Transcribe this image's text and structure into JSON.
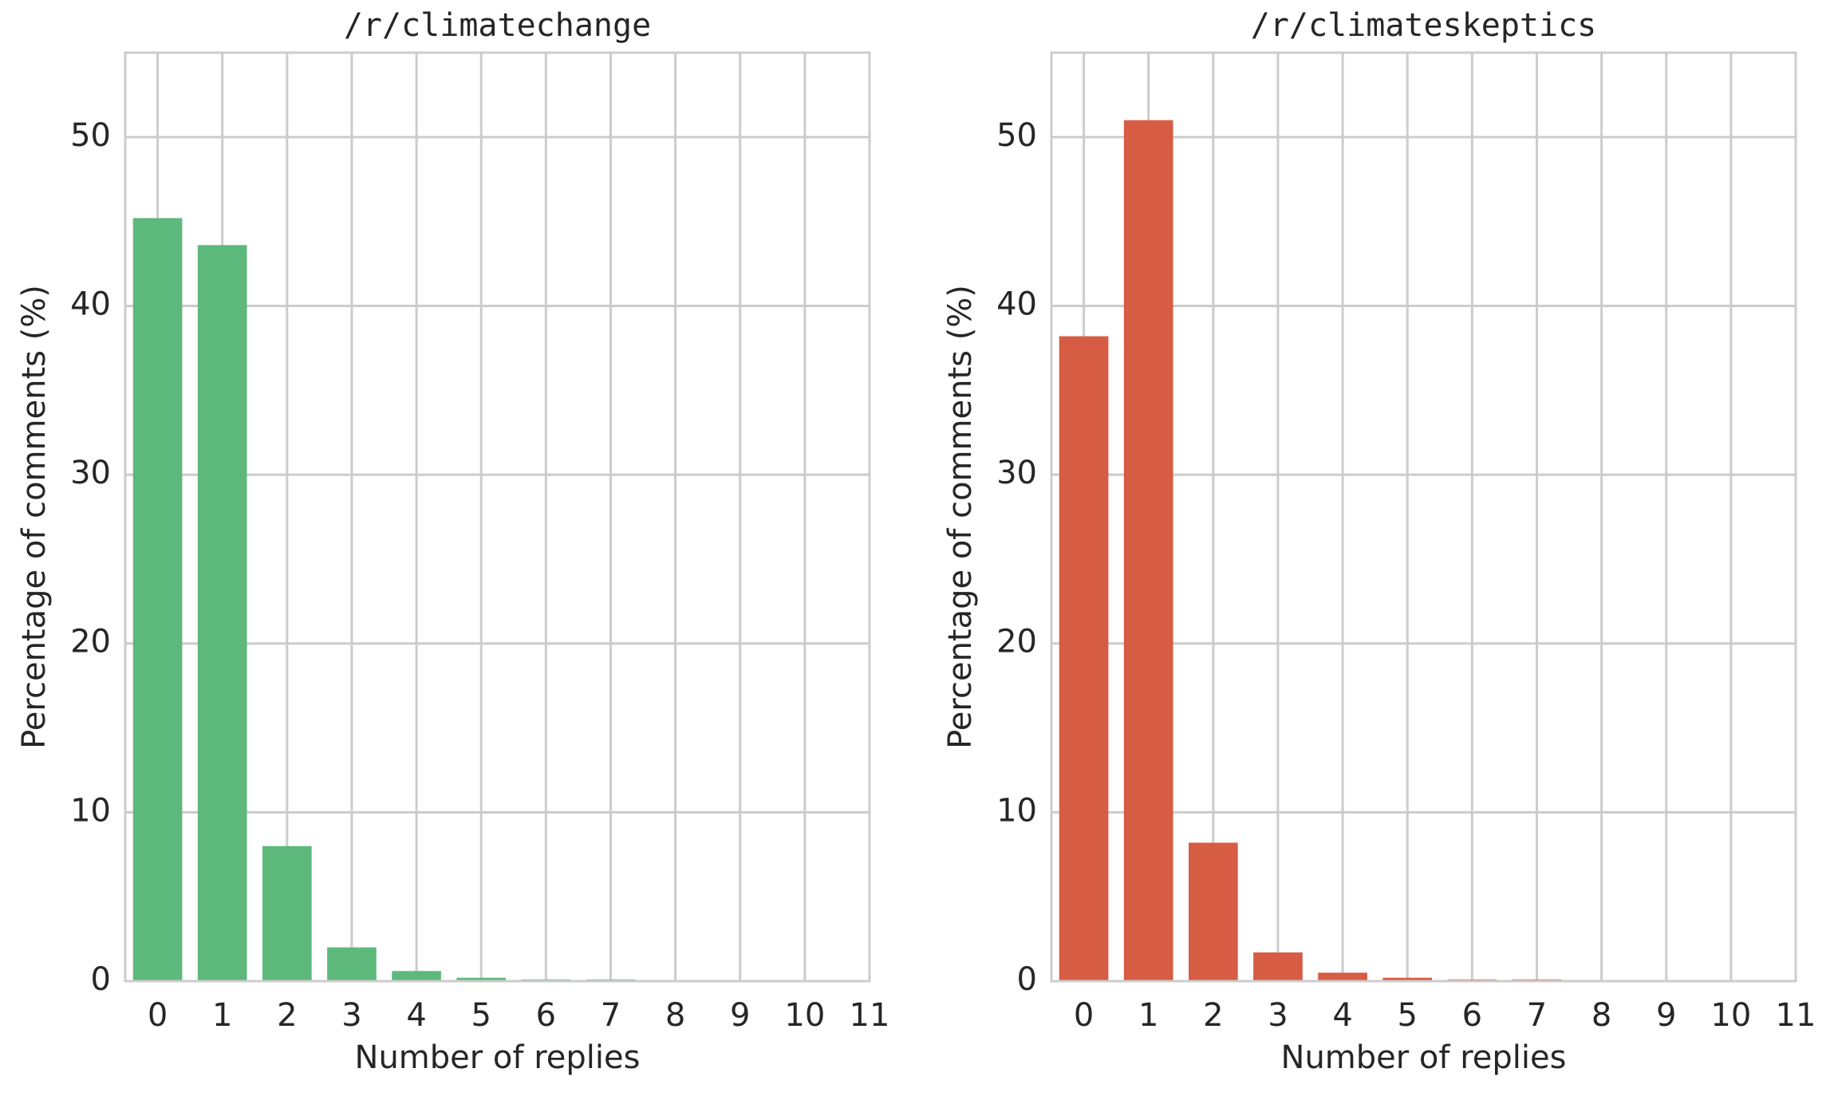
{
  "chart_data": [
    {
      "type": "bar",
      "title": "/r/climatechange",
      "x_label": "Number of replies",
      "y_label": "Percentage of comments (%)",
      "x": [
        0,
        1,
        2,
        3,
        4,
        5,
        6,
        7,
        8,
        9,
        10,
        11
      ],
      "values": [
        45.2,
        43.6,
        8.0,
        2.0,
        0.6,
        0.2,
        0.1,
        0.1,
        0,
        0,
        0,
        0
      ],
      "color": "#5db87b",
      "xlim": [
        -0.5,
        11
      ],
      "ylim": [
        0,
        55
      ],
      "xticks": [
        0,
        1,
        2,
        3,
        4,
        5,
        6,
        7,
        8,
        9,
        10,
        11
      ],
      "yticks": [
        0,
        10,
        20,
        30,
        40,
        50
      ],
      "grid": true
    },
    {
      "type": "bar",
      "title": "/r/climateskeptics",
      "x_label": "Number of replies",
      "y_label": "Percentage of comments (%)",
      "x": [
        0,
        1,
        2,
        3,
        4,
        5,
        6,
        7,
        8,
        9,
        10,
        11
      ],
      "values": [
        38.2,
        51.0,
        8.2,
        1.7,
        0.5,
        0.2,
        0.1,
        0.1,
        0,
        0,
        0,
        0
      ],
      "color": "#d65c44",
      "xlim": [
        -0.5,
        11
      ],
      "ylim": [
        0,
        55
      ],
      "xticks": [
        0,
        1,
        2,
        3,
        4,
        5,
        6,
        7,
        8,
        9,
        10,
        11
      ],
      "yticks": [
        0,
        10,
        20,
        30,
        40,
        50
      ],
      "grid": true
    }
  ]
}
